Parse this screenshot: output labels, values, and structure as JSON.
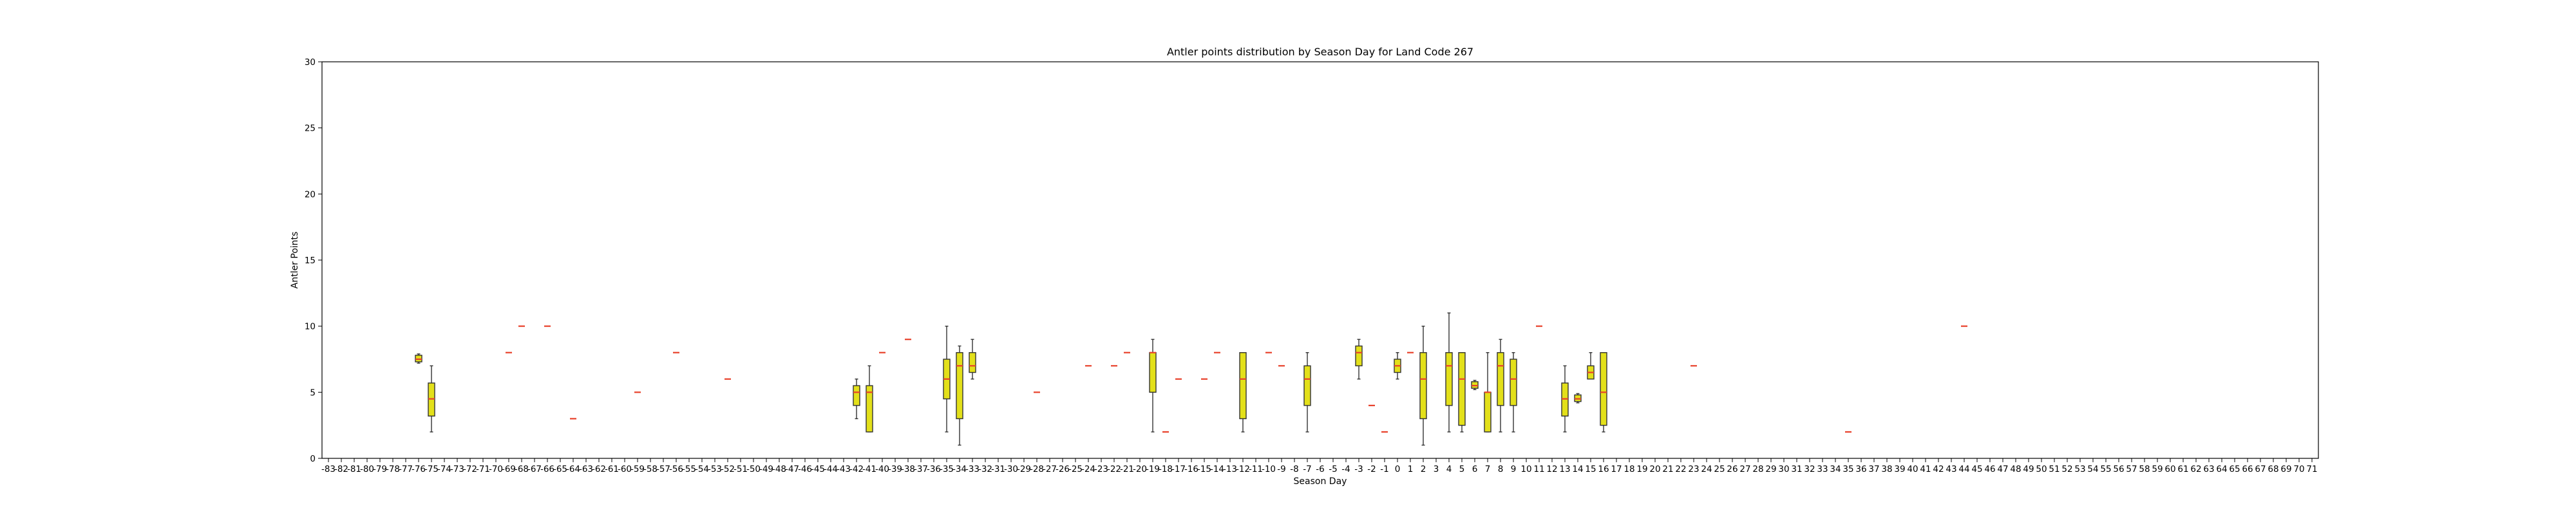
{
  "chart_data": {
    "type": "boxplot",
    "title": "Antler points distribution by Season Day for Land Code 267",
    "xlabel": "Season Day",
    "ylabel": "Antler Points",
    "ylim": [
      0,
      30
    ],
    "yticks": [
      0,
      5,
      10,
      15,
      20,
      25,
      30
    ],
    "x_categories_range": [
      -83,
      71
    ],
    "grid": false,
    "colors": {
      "box_fill": "#e3e01a",
      "box_edge": "#333333",
      "median": "#e8412b",
      "whisker": "#333333"
    },
    "boxes": [
      {
        "day": -76,
        "whislo": 7.2,
        "q1": 7.3,
        "med": 7.5,
        "q3": 7.8,
        "whishi": 7.9
      },
      {
        "day": -75,
        "whislo": 2,
        "q1": 3.2,
        "med": 4.5,
        "q3": 5.7,
        "whishi": 7
      },
      {
        "day": -69,
        "whislo": 8,
        "q1": 8,
        "med": 8,
        "q3": 8,
        "whishi": 8
      },
      {
        "day": -68,
        "whislo": 10,
        "q1": 10,
        "med": 10,
        "q3": 10,
        "whishi": 10
      },
      {
        "day": -66,
        "whislo": 10,
        "q1": 10,
        "med": 10,
        "q3": 10,
        "whishi": 10
      },
      {
        "day": -64,
        "whislo": 3,
        "q1": 3,
        "med": 3,
        "q3": 3,
        "whishi": 3
      },
      {
        "day": -59,
        "whislo": 5,
        "q1": 5,
        "med": 5,
        "q3": 5,
        "whishi": 5
      },
      {
        "day": -56,
        "whislo": 8,
        "q1": 8,
        "med": 8,
        "q3": 8,
        "whishi": 8
      },
      {
        "day": -52,
        "whislo": 6,
        "q1": 6,
        "med": 6,
        "q3": 6,
        "whishi": 6
      },
      {
        "day": -42,
        "whislo": 3,
        "q1": 4,
        "med": 5,
        "q3": 5.5,
        "whishi": 6
      },
      {
        "day": -41,
        "whislo": 2,
        "q1": 2,
        "med": 5,
        "q3": 5.5,
        "whishi": 7
      },
      {
        "day": -40,
        "whislo": 8,
        "q1": 8,
        "med": 8,
        "q3": 8,
        "whishi": 8
      },
      {
        "day": -38,
        "whislo": 9,
        "q1": 9,
        "med": 9,
        "q3": 9,
        "whishi": 9
      },
      {
        "day": -35,
        "whislo": 2,
        "q1": 4.5,
        "med": 6,
        "q3": 7.5,
        "whishi": 10
      },
      {
        "day": -34,
        "whislo": 1,
        "q1": 3,
        "med": 7,
        "q3": 8,
        "whishi": 8.5
      },
      {
        "day": -33,
        "whislo": 6,
        "q1": 6.5,
        "med": 7,
        "q3": 8,
        "whishi": 9
      },
      {
        "day": -28,
        "whislo": 5,
        "q1": 5,
        "med": 5,
        "q3": 5,
        "whishi": 5
      },
      {
        "day": -24,
        "whislo": 7,
        "q1": 7,
        "med": 7,
        "q3": 7,
        "whishi": 7
      },
      {
        "day": -22,
        "whislo": 7,
        "q1": 7,
        "med": 7,
        "q3": 7,
        "whishi": 7
      },
      {
        "day": -21,
        "whislo": 8,
        "q1": 8,
        "med": 8,
        "q3": 8,
        "whishi": 8
      },
      {
        "day": -19,
        "whislo": 2,
        "q1": 5,
        "med": 8,
        "q3": 8,
        "whishi": 9
      },
      {
        "day": -18,
        "whislo": 2,
        "q1": 2,
        "med": 2,
        "q3": 2,
        "whishi": 2
      },
      {
        "day": -17,
        "whislo": 6,
        "q1": 6,
        "med": 6,
        "q3": 6,
        "whishi": 6
      },
      {
        "day": -15,
        "whislo": 6,
        "q1": 6,
        "med": 6,
        "q3": 6,
        "whishi": 6
      },
      {
        "day": -14,
        "whislo": 8,
        "q1": 8,
        "med": 8,
        "q3": 8,
        "whishi": 8
      },
      {
        "day": -12,
        "whislo": 2,
        "q1": 3,
        "med": 6,
        "q3": 8,
        "whishi": 8
      },
      {
        "day": -10,
        "whislo": 8,
        "q1": 8,
        "med": 8,
        "q3": 8,
        "whishi": 8
      },
      {
        "day": -9,
        "whislo": 7,
        "q1": 7,
        "med": 7,
        "q3": 7,
        "whishi": 7
      },
      {
        "day": -7,
        "whislo": 2,
        "q1": 4,
        "med": 6,
        "q3": 7,
        "whishi": 8
      },
      {
        "day": -3,
        "whislo": 6,
        "q1": 7,
        "med": 8,
        "q3": 8.5,
        "whishi": 9
      },
      {
        "day": -2,
        "whislo": 4,
        "q1": 4,
        "med": 4,
        "q3": 4,
        "whishi": 4
      },
      {
        "day": -1,
        "whislo": 2,
        "q1": 2,
        "med": 2,
        "q3": 2,
        "whishi": 2
      },
      {
        "day": 0,
        "whislo": 6,
        "q1": 6.5,
        "med": 7,
        "q3": 7.5,
        "whishi": 8
      },
      {
        "day": 1,
        "whislo": 8,
        "q1": 8,
        "med": 8,
        "q3": 8,
        "whishi": 8
      },
      {
        "day": 2,
        "whislo": 1,
        "q1": 3,
        "med": 6,
        "q3": 8,
        "whishi": 10
      },
      {
        "day": 4,
        "whislo": 2,
        "q1": 4,
        "med": 7,
        "q3": 8,
        "whishi": 11
      },
      {
        "day": 5,
        "whislo": 2,
        "q1": 2.5,
        "med": 6,
        "q3": 8,
        "whishi": 8
      },
      {
        "day": 6,
        "whislo": 5.2,
        "q1": 5.3,
        "med": 5.5,
        "q3": 5.8,
        "whishi": 5.9
      },
      {
        "day": 7,
        "whislo": 2,
        "q1": 2,
        "med": 5,
        "q3": 5,
        "whishi": 8
      },
      {
        "day": 8,
        "whislo": 2,
        "q1": 4,
        "med": 7,
        "q3": 8,
        "whishi": 9
      },
      {
        "day": 9,
        "whislo": 2,
        "q1": 4,
        "med": 6,
        "q3": 7.5,
        "whishi": 8
      },
      {
        "day": 11,
        "whislo": 10,
        "q1": 10,
        "med": 10,
        "q3": 10,
        "whishi": 10
      },
      {
        "day": 13,
        "whislo": 2,
        "q1": 3.2,
        "med": 4.5,
        "q3": 5.7,
        "whishi": 7
      },
      {
        "day": 14,
        "whislo": 4.2,
        "q1": 4.3,
        "med": 4.5,
        "q3": 4.8,
        "whishi": 4.9
      },
      {
        "day": 15,
        "whislo": 6,
        "q1": 6,
        "med": 6.5,
        "q3": 7,
        "whishi": 8
      },
      {
        "day": 16,
        "whislo": 2,
        "q1": 2.5,
        "med": 5,
        "q3": 8,
        "whishi": 8
      },
      {
        "day": 23,
        "whislo": 7,
        "q1": 7,
        "med": 7,
        "q3": 7,
        "whishi": 7
      },
      {
        "day": 35,
        "whislo": 2,
        "q1": 2,
        "med": 2,
        "q3": 2,
        "whishi": 2
      },
      {
        "day": 44,
        "whislo": 10,
        "q1": 10,
        "med": 10,
        "q3": 10,
        "whishi": 10
      }
    ]
  }
}
